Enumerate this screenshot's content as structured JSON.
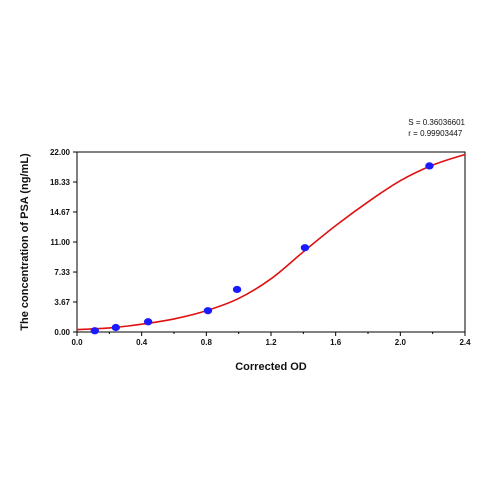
{
  "chart_data": {
    "type": "scatter",
    "title": "",
    "xlabel": "Corrected OD",
    "ylabel": "The concentration of PSA (ng/mL)",
    "xlim": [
      0.0,
      2.4
    ],
    "ylim": [
      0.0,
      22.0
    ],
    "x_ticks": [
      "0.0",
      "0.4",
      "0.8",
      "1.2",
      "1.6",
      "2.0",
      "2.4"
    ],
    "y_ticks": [
      "0.00",
      "3.67",
      "7.33",
      "11.00",
      "14.67",
      "18.33",
      "22.00"
    ],
    "grid": false,
    "points": [
      {
        "x": 0.11,
        "y": 0.15
      },
      {
        "x": 0.24,
        "y": 0.55
      },
      {
        "x": 0.44,
        "y": 1.25
      },
      {
        "x": 0.81,
        "y": 2.6
      },
      {
        "x": 0.99,
        "y": 5.2
      },
      {
        "x": 1.41,
        "y": 10.3
      },
      {
        "x": 2.18,
        "y": 20.3
      }
    ],
    "fit_curve": [
      {
        "x": 0.0,
        "y": 0.3
      },
      {
        "x": 0.2,
        "y": 0.5
      },
      {
        "x": 0.4,
        "y": 0.95
      },
      {
        "x": 0.6,
        "y": 1.6
      },
      {
        "x": 0.8,
        "y": 2.6
      },
      {
        "x": 1.0,
        "y": 4.1
      },
      {
        "x": 1.2,
        "y": 6.5
      },
      {
        "x": 1.4,
        "y": 9.8
      },
      {
        "x": 1.6,
        "y": 13.0
      },
      {
        "x": 1.8,
        "y": 15.9
      },
      {
        "x": 2.0,
        "y": 18.5
      },
      {
        "x": 2.2,
        "y": 20.4
      },
      {
        "x": 2.4,
        "y": 21.7
      }
    ],
    "stats": {
      "s": "S = 0.36036601",
      "r": "r = 0.99903447"
    },
    "colors": {
      "points": "#1a1aff",
      "curve": "#e11010",
      "axes": "#000000"
    }
  }
}
